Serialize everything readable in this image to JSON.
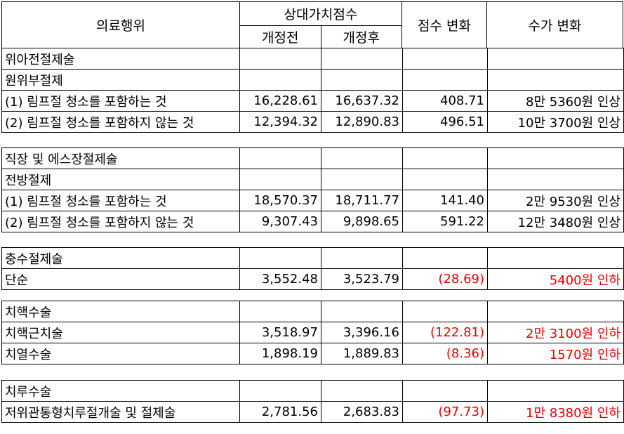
{
  "header": {
    "procedure": "의료행위",
    "rvs": "상대가치점수",
    "before": "개정전",
    "after": "개정후",
    "score_change": "점수 변화",
    "fee_change": "수가 변화"
  },
  "sections": [
    {
      "rows": [
        {
          "name": "위아전절제술",
          "before": "",
          "after": "",
          "score_change": "",
          "fee_change": "",
          "negative": false
        },
        {
          "name": "원위부절제",
          "before": "",
          "after": "",
          "score_change": "",
          "fee_change": "",
          "negative": false
        },
        {
          "name": "(1) 림프절 청소를 포함하는 것",
          "before": "16,228.61",
          "after": "16,637.32",
          "score_change": "408.71",
          "fee_change": "8만 5360원 인상",
          "negative": false
        },
        {
          "name": "(2) 림프절 청소를 포함하지 않는 것",
          "before": "12,394.32",
          "after": "12,890.83",
          "score_change": "496.51",
          "fee_change": "10만 3700원 인상",
          "negative": false
        }
      ]
    },
    {
      "rows": [
        {
          "name": "직장 및 에스장절제술",
          "before": "",
          "after": "",
          "score_change": "",
          "fee_change": "",
          "negative": false
        },
        {
          "name": "전방절제",
          "before": "",
          "after": "",
          "score_change": "",
          "fee_change": "",
          "negative": false
        },
        {
          "name": "(1) 림프절 청소를 포함하는 것",
          "before": "18,570.37",
          "after": "18,711.77",
          "score_change": "141.40",
          "fee_change": "2만 9530원 인상",
          "negative": false
        },
        {
          "name": "(2) 림프절 청소를 포함하지 않는 것",
          "before": "9,307.43",
          "after": "9,898.65",
          "score_change": "591.22",
          "fee_change": "12만 3480원 인상",
          "negative": false
        }
      ]
    },
    {
      "rows": [
        {
          "name": "충수절제술",
          "before": "",
          "after": "",
          "score_change": "",
          "fee_change": "",
          "negative": false
        },
        {
          "name": "단순",
          "before": "3,552.48",
          "after": "3,523.79",
          "score_change": "(28.69)",
          "fee_change": "5400원 인하",
          "negative": true
        }
      ]
    },
    {
      "rows": [
        {
          "name": "치핵수술",
          "before": "",
          "after": "",
          "score_change": "",
          "fee_change": "",
          "negative": false
        },
        {
          "name": "치핵근치술",
          "before": "3,518.97",
          "after": "3,396.16",
          "score_change": "(122.81)",
          "fee_change": "2만 3100원 인하",
          "negative": true
        },
        {
          "name": "치열수술",
          "before": "1,898.19",
          "after": "1,889.83",
          "score_change": "(8.36)",
          "fee_change": "1570원 인하",
          "negative": true
        }
      ]
    },
    {
      "rows": [
        {
          "name": "치루수술",
          "before": "",
          "after": "",
          "score_change": "",
          "fee_change": "",
          "negative": false
        },
        {
          "name": "저위관통형치루절개술 및 절제술",
          "before": "2,781.56",
          "after": "2,683.83",
          "score_change": "(97.73)",
          "fee_change": "1만 8380원 인하",
          "negative": true
        }
      ]
    }
  ],
  "colors": {
    "negative": "#e60000",
    "text": "#000000",
    "border": "#000000"
  }
}
